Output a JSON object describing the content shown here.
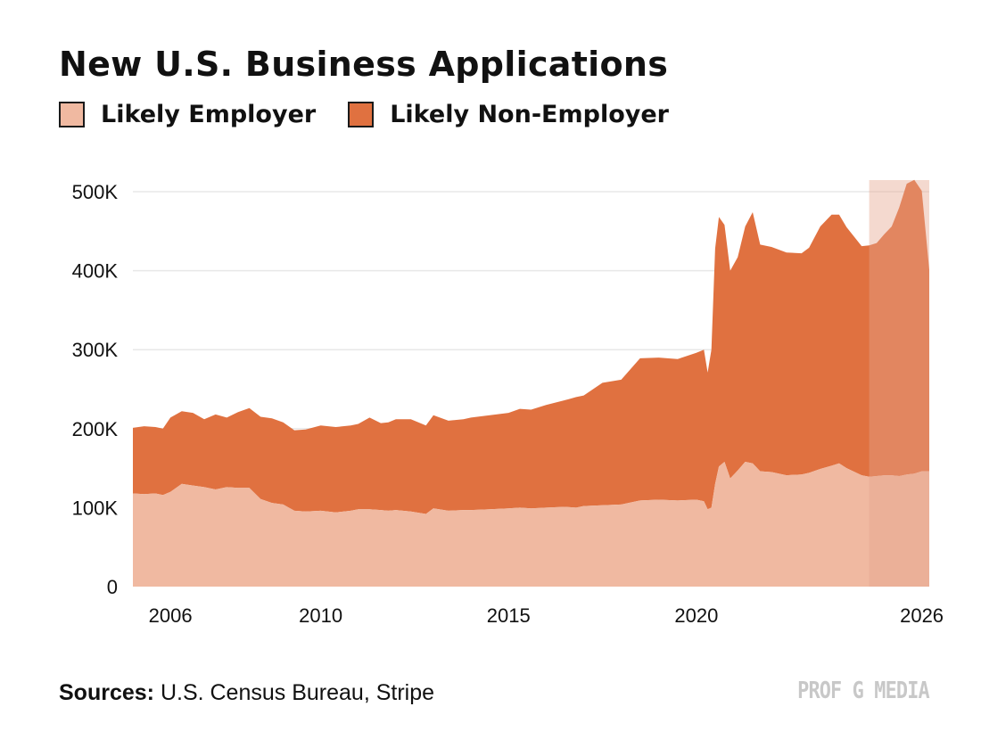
{
  "title": "New U.S. Business Applications",
  "source": {
    "label": "Sources:",
    "text": "U.S. Census Bureau, Stripe"
  },
  "brand": "PROF G MEDIA",
  "chart_data": {
    "type": "area",
    "stacked": true,
    "title": "New U.S. Business Applications",
    "legend": "top-left",
    "grid": true,
    "ylim": [
      0,
      500000
    ],
    "xlim": [
      2005.0,
      2026.2
    ],
    "x_ticks": [
      2006,
      2010,
      2015,
      2020,
      2026
    ],
    "y_ticks": [
      {
        "value": 0,
        "label": "0"
      },
      {
        "value": 100000,
        "label": "100K"
      },
      {
        "value": 200000,
        "label": "200K"
      },
      {
        "value": 300000,
        "label": "300K"
      },
      {
        "value": 400000,
        "label": "400K"
      },
      {
        "value": 500000,
        "label": "500K"
      }
    ],
    "highlight": {
      "x_start": 2024.6,
      "x_end": 2026.2
    },
    "colors": {
      "employer": "#f0b9a1",
      "non_employer": "#e07140",
      "highlight": "#e4a48c",
      "grid": "#e8e8e8"
    },
    "series": [
      {
        "name": "Likely Employer",
        "x": [
          2005.0,
          2005.3,
          2005.6,
          2005.8,
          2006.0,
          2006.3,
          2006.6,
          2006.9,
          2007.2,
          2007.5,
          2007.8,
          2008.1,
          2008.4,
          2008.7,
          2009.0,
          2009.3,
          2009.6,
          2010.0,
          2010.4,
          2010.8,
          2011.0,
          2011.3,
          2011.6,
          2011.8,
          2012.0,
          2012.4,
          2012.8,
          2013.0,
          2013.4,
          2013.8,
          2014.0,
          2014.5,
          2015.0,
          2015.3,
          2015.6,
          2016.0,
          2016.5,
          2016.8,
          2017.0,
          2017.5,
          2018.0,
          2018.5,
          2019.0,
          2019.5,
          2020.0,
          2020.2,
          2020.3,
          2020.4,
          2020.5,
          2020.6,
          2020.75,
          2020.9,
          2021.1,
          2021.3,
          2021.5,
          2021.7,
          2022.0,
          2022.4,
          2022.8,
          2023.0,
          2023.3,
          2023.6,
          2023.8,
          2024.0,
          2024.4,
          2024.6,
          2024.8,
          2025.0,
          2025.2,
          2025.4,
          2025.6,
          2025.8,
          2026.0,
          2026.2
        ],
        "values": [
          118000,
          117000,
          118000,
          116000,
          120000,
          130000,
          128000,
          126000,
          123000,
          126000,
          125000,
          125000,
          111000,
          106000,
          104000,
          96000,
          95000,
          96000,
          94000,
          96000,
          98000,
          98000,
          97000,
          96000,
          97000,
          95000,
          92000,
          99000,
          96000,
          97000,
          97000,
          98000,
          99000,
          100000,
          99000,
          100000,
          101000,
          100000,
          102000,
          103000,
          104000,
          109000,
          110000,
          109000,
          110000,
          108000,
          98000,
          100000,
          130000,
          152000,
          158000,
          137000,
          147000,
          158000,
          156000,
          146000,
          145000,
          141000,
          142000,
          144000,
          149000,
          153000,
          156000,
          150000,
          141000,
          139000,
          140000,
          141000,
          141000,
          140000,
          142000,
          143000,
          146000,
          146000
        ]
      },
      {
        "name": "Likely Non-Employer",
        "x": [
          2005.0,
          2005.3,
          2005.6,
          2005.8,
          2006.0,
          2006.3,
          2006.6,
          2006.9,
          2007.2,
          2007.5,
          2007.8,
          2008.1,
          2008.4,
          2008.7,
          2009.0,
          2009.3,
          2009.6,
          2010.0,
          2010.4,
          2010.8,
          2011.0,
          2011.3,
          2011.6,
          2011.8,
          2012.0,
          2012.4,
          2012.8,
          2013.0,
          2013.4,
          2013.8,
          2014.0,
          2014.5,
          2015.0,
          2015.3,
          2015.6,
          2016.0,
          2016.5,
          2016.8,
          2017.0,
          2017.5,
          2018.0,
          2018.5,
          2019.0,
          2019.5,
          2020.0,
          2020.2,
          2020.3,
          2020.4,
          2020.5,
          2020.6,
          2020.75,
          2020.9,
          2021.1,
          2021.3,
          2021.5,
          2021.7,
          2022.0,
          2022.4,
          2022.8,
          2023.0,
          2023.3,
          2023.6,
          2023.8,
          2024.0,
          2024.4,
          2024.6,
          2024.8,
          2025.0,
          2025.2,
          2025.4,
          2025.6,
          2025.8,
          2026.0,
          2026.2
        ],
        "values": [
          83000,
          86000,
          84000,
          84000,
          94000,
          92000,
          92000,
          86000,
          95000,
          88000,
          96000,
          101000,
          104000,
          107000,
          104000,
          102000,
          104000,
          108000,
          108000,
          108000,
          108000,
          116000,
          110000,
          112000,
          115000,
          117000,
          112000,
          118000,
          114000,
          115000,
          117000,
          119000,
          121000,
          125000,
          125000,
          130000,
          135000,
          140000,
          140000,
          155000,
          158000,
          180000,
          180000,
          179000,
          186000,
          192000,
          173000,
          200000,
          298000,
          316000,
          300000,
          263000,
          270000,
          298000,
          318000,
          287000,
          285000,
          282000,
          280000,
          285000,
          307000,
          318000,
          315000,
          305000,
          290000,
          293000,
          295000,
          305000,
          315000,
          340000,
          368000,
          372000,
          355000,
          255000
        ]
      }
    ]
  }
}
